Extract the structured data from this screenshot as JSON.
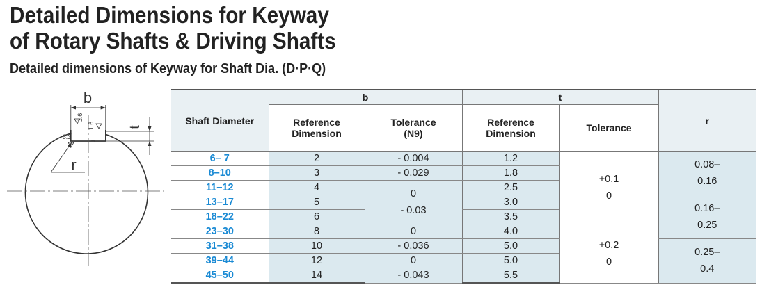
{
  "heading": {
    "title_line1": "Detailed Dimensions for Keyway",
    "title_line2": "of Rotary Shafts & Driving Shafts",
    "subtitle": "Detailed dimensions of Keyway for Shaft Dia. (D·P·Q)"
  },
  "diagram": {
    "label_b": "b",
    "label_t": "t",
    "label_r": "r",
    "roughness_1": "1.6",
    "roughness_2": "1.6",
    "roughness_3": "6.3"
  },
  "table": {
    "group_b": "b",
    "group_t": "t",
    "shaft_diameter": "Shaft Diameter",
    "b_reference": "Reference Dimension",
    "b_tolerance": "Tolerance (N9)",
    "t_reference": "Reference Dimension",
    "t_tolerance": "Tolerance",
    "r": "r",
    "rows": [
      {
        "shaft": "6– 7",
        "b_ref": "2",
        "t_ref": "1.2"
      },
      {
        "shaft": "8–10",
        "b_ref": "3",
        "t_ref": "1.8"
      },
      {
        "shaft": "11–12",
        "b_ref": "4",
        "t_ref": "2.5"
      },
      {
        "shaft": "13–17",
        "b_ref": "5",
        "t_ref": "3.0"
      },
      {
        "shaft": "18–22",
        "b_ref": "6",
        "t_ref": "3.5"
      },
      {
        "shaft": "23–30",
        "b_ref": "8",
        "t_ref": "4.0"
      },
      {
        "shaft": "31–38",
        "b_ref": "10",
        "t_ref": "5.0"
      },
      {
        "shaft": "39–44",
        "b_ref": "12",
        "t_ref": "5.0"
      },
      {
        "shaft": "45–50",
        "b_ref": "14",
        "t_ref": "5.5"
      }
    ],
    "b_tol": {
      "g1_upper": "- 0.004",
      "g1_lower": "- 0.029",
      "g2_upper": "0",
      "g2_lower": "- 0.03",
      "g3_upper": "0",
      "g3_lower": "- 0.036",
      "g4_upper": "0",
      "g4_lower": "- 0.043"
    },
    "t_tol": {
      "g1_upper": "+0.1",
      "g1_lower": "0",
      "g2_upper": "+0.2",
      "g2_lower": "0"
    },
    "r_vals": {
      "g1_a": "0.08–",
      "g1_b": "0.16",
      "g2_a": "0.16–",
      "g2_b": "0.25",
      "g3_a": "0.25–",
      "g3_b": "0.4"
    }
  }
}
